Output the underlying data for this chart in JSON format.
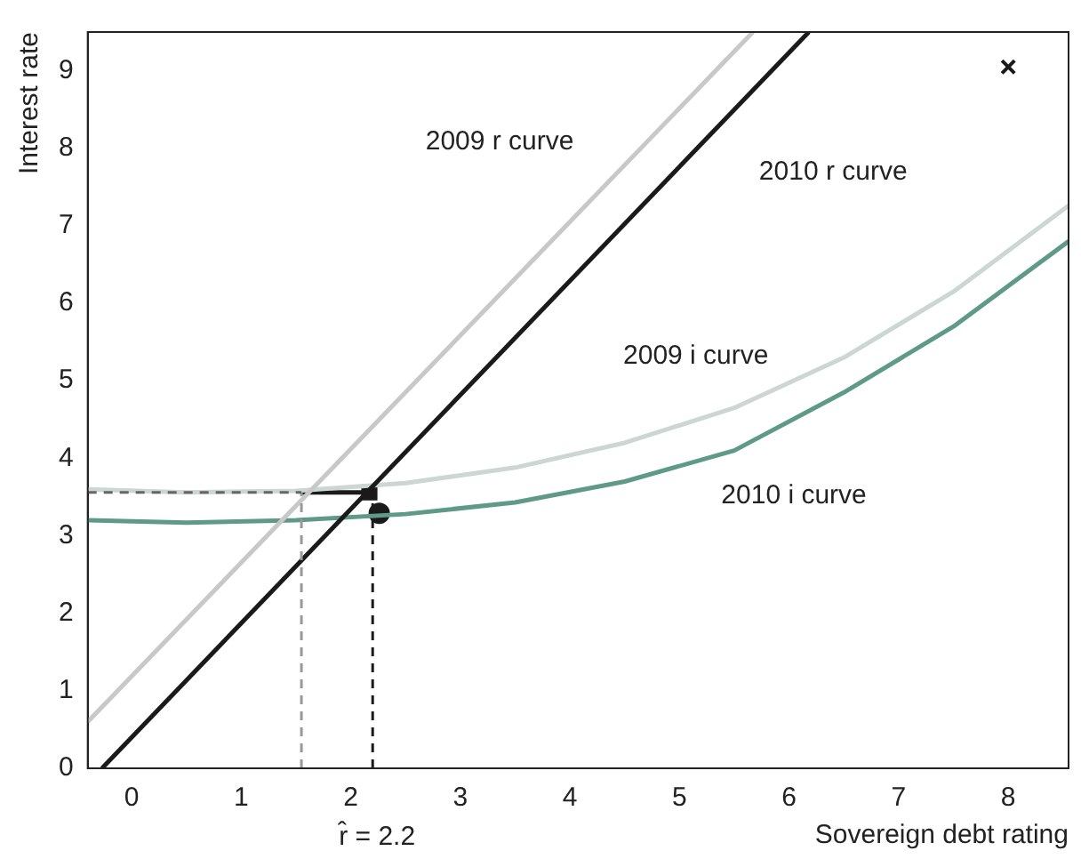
{
  "chart_data": {
    "type": "line",
    "xlabel": "Sovereign debt rating",
    "ylabel": "Interest rate",
    "xlim": [
      -0.4,
      8.55
    ],
    "ylim": [
      0,
      9.5
    ],
    "xticks": [
      0,
      1,
      2,
      3,
      4,
      5,
      6,
      7,
      8
    ],
    "yticks": [
      0,
      1,
      2,
      3,
      4,
      5,
      6,
      7,
      8,
      9
    ],
    "grid": false,
    "legend": false,
    "series": [
      {
        "name": "2009 r curve",
        "color": "#c8c8c8",
        "x": [
          -0.4,
          5.67
        ],
        "values": [
          0.6,
          9.5
        ]
      },
      {
        "name": "2010 r curve",
        "color": "#1a1a1a",
        "x": [
          -0.27,
          6.18
        ],
        "values": [
          0,
          9.5
        ]
      },
      {
        "name": "2009 i curve",
        "color": "#ccd6d2",
        "x": [
          -0.4,
          0.5,
          1.5,
          2.5,
          3.5,
          4.5,
          5.5,
          6.5,
          7.5,
          8.55
        ],
        "values": [
          3.6,
          3.56,
          3.58,
          3.68,
          3.88,
          4.2,
          4.65,
          5.3,
          6.15,
          7.26
        ]
      },
      {
        "name": "2010 i curve",
        "color": "#5f9a88",
        "x": [
          -0.4,
          0.5,
          1.5,
          2.5,
          3.5,
          4.5,
          5.5,
          6.5,
          7.5,
          8.55
        ],
        "values": [
          3.2,
          3.17,
          3.2,
          3.28,
          3.43,
          3.7,
          4.1,
          4.85,
          5.7,
          6.8
        ]
      },
      {
        "color": "#666666",
        "line_style": "dashed",
        "x": [
          -0.4,
          1.55
        ],
        "values": [
          3.56,
          3.56
        ]
      },
      {
        "color": "#999999",
        "line_style": "dashed",
        "x": [
          1.55,
          1.55
        ],
        "values": [
          0,
          3.56
        ]
      },
      {
        "color": "#1a1a1a",
        "line_style": "dashed",
        "x": [
          2.2,
          2.2
        ],
        "values": [
          0,
          3.56
        ]
      },
      {
        "color": "#1a1a1a",
        "x": [
          1.55,
          2.15
        ],
        "values": [
          3.56,
          3.56
        ]
      },
      {
        "type": "scatter",
        "color": "#1a1a1a",
        "marker": "square",
        "x": [
          2.17
        ],
        "values": [
          3.56
        ]
      },
      {
        "type": "scatter",
        "color": "#1a1a1a",
        "marker": "circle",
        "x": [
          2.26
        ],
        "values": [
          3.29
        ]
      },
      {
        "type": "scatter",
        "color": "#1a1a1a",
        "marker": "cross",
        "x": [
          8
        ],
        "values": [
          9.05
        ]
      }
    ],
    "annotations": [
      "r̂ = 2.2"
    ]
  }
}
